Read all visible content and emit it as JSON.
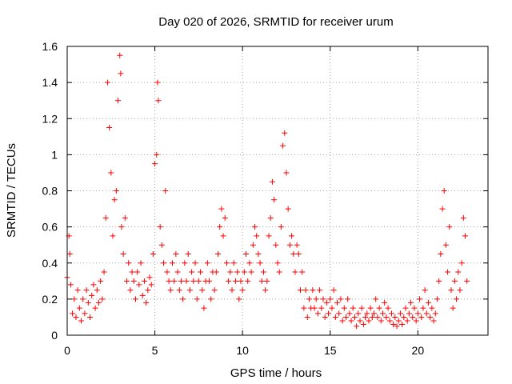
{
  "chart_data": {
    "type": "scatter",
    "title": "Day 020 of 2026, SRMTID for receiver urum",
    "xlabel": "GPS time / hours",
    "ylabel": "SRMTID / TECUs",
    "xlim": [
      0,
      24
    ],
    "ylim": [
      0,
      1.6
    ],
    "xticks": [
      0,
      5,
      10,
      15,
      20
    ],
    "xtick_labels": [
      "0",
      "5",
      "10",
      "15",
      "20"
    ],
    "yticks": [
      0,
      0.2,
      0.4,
      0.6,
      0.8,
      1.0,
      1.2,
      1.4,
      1.6
    ],
    "ytick_labels": [
      "0",
      "0.2",
      "0.4",
      "0.6",
      "0.8",
      "1",
      "1.2",
      "1.4",
      "1.6"
    ],
    "grid": true,
    "marker": "+",
    "color": "#ff0000",
    "series": [
      {
        "name": "SRMTID",
        "points": [
          [
            0.0,
            0.32
          ],
          [
            0.1,
            0.55
          ],
          [
            0.15,
            0.45
          ],
          [
            0.2,
            0.28
          ],
          [
            0.3,
            0.12
          ],
          [
            0.4,
            0.2
          ],
          [
            0.5,
            0.1
          ],
          [
            0.6,
            0.25
          ],
          [
            0.7,
            0.15
          ],
          [
            0.8,
            0.08
          ],
          [
            0.9,
            0.2
          ],
          [
            1.0,
            0.12
          ],
          [
            1.1,
            0.25
          ],
          [
            1.2,
            0.18
          ],
          [
            1.3,
            0.1
          ],
          [
            1.4,
            0.22
          ],
          [
            1.5,
            0.28
          ],
          [
            1.6,
            0.15
          ],
          [
            1.7,
            0.25
          ],
          [
            1.8,
            0.18
          ],
          [
            1.9,
            0.3
          ],
          [
            2.0,
            0.2
          ],
          [
            2.1,
            0.35
          ],
          [
            2.2,
            0.65
          ],
          [
            2.3,
            1.4
          ],
          [
            2.4,
            1.15
          ],
          [
            2.5,
            0.9
          ],
          [
            2.6,
            0.55
          ],
          [
            2.7,
            0.75
          ],
          [
            2.8,
            0.8
          ],
          [
            2.9,
            1.3
          ],
          [
            3.0,
            1.55
          ],
          [
            3.05,
            1.45
          ],
          [
            3.1,
            0.6
          ],
          [
            3.2,
            0.45
          ],
          [
            3.3,
            0.65
          ],
          [
            3.4,
            0.3
          ],
          [
            3.5,
            0.4
          ],
          [
            3.6,
            0.25
          ],
          [
            3.7,
            0.35
          ],
          [
            3.8,
            0.3
          ],
          [
            3.9,
            0.2
          ],
          [
            4.0,
            0.35
          ],
          [
            4.1,
            0.28
          ],
          [
            4.2,
            0.4
          ],
          [
            4.3,
            0.22
          ],
          [
            4.4,
            0.3
          ],
          [
            4.5,
            0.18
          ],
          [
            4.6,
            0.25
          ],
          [
            4.7,
            0.32
          ],
          [
            4.8,
            0.28
          ],
          [
            4.9,
            0.45
          ],
          [
            5.0,
            0.95
          ],
          [
            5.1,
            1.0
          ],
          [
            5.15,
            1.4
          ],
          [
            5.2,
            1.3
          ],
          [
            5.3,
            0.6
          ],
          [
            5.4,
            0.5
          ],
          [
            5.5,
            0.4
          ],
          [
            5.6,
            0.8
          ],
          [
            5.7,
            0.35
          ],
          [
            5.8,
            0.3
          ],
          [
            5.9,
            0.25
          ],
          [
            6.0,
            0.4
          ],
          [
            6.1,
            0.3
          ],
          [
            6.2,
            0.45
          ],
          [
            6.3,
            0.35
          ],
          [
            6.4,
            0.25
          ],
          [
            6.5,
            0.3
          ],
          [
            6.6,
            0.2
          ],
          [
            6.7,
            0.4
          ],
          [
            6.8,
            0.3
          ],
          [
            6.9,
            0.45
          ],
          [
            7.0,
            0.25
          ],
          [
            7.1,
            0.35
          ],
          [
            7.2,
            0.3
          ],
          [
            7.3,
            0.4
          ],
          [
            7.4,
            0.2
          ],
          [
            7.5,
            0.3
          ],
          [
            7.6,
            0.35
          ],
          [
            7.7,
            0.25
          ],
          [
            7.8,
            0.15
          ],
          [
            7.9,
            0.3
          ],
          [
            8.0,
            0.4
          ],
          [
            8.1,
            0.3
          ],
          [
            8.2,
            0.2
          ],
          [
            8.3,
            0.35
          ],
          [
            8.4,
            0.25
          ],
          [
            8.5,
            0.35
          ],
          [
            8.6,
            0.45
          ],
          [
            8.7,
            0.6
          ],
          [
            8.8,
            0.7
          ],
          [
            8.9,
            0.55
          ],
          [
            9.0,
            0.65
          ],
          [
            9.1,
            0.4
          ],
          [
            9.2,
            0.3
          ],
          [
            9.3,
            0.35
          ],
          [
            9.4,
            0.25
          ],
          [
            9.5,
            0.4
          ],
          [
            9.6,
            0.3
          ],
          [
            9.7,
            0.35
          ],
          [
            9.8,
            0.2
          ],
          [
            9.9,
            0.3
          ],
          [
            10.0,
            0.25
          ],
          [
            10.1,
            0.35
          ],
          [
            10.2,
            0.45
          ],
          [
            10.3,
            0.3
          ],
          [
            10.4,
            0.4
          ],
          [
            10.5,
            0.35
          ],
          [
            10.6,
            0.5
          ],
          [
            10.7,
            0.6
          ],
          [
            10.8,
            0.55
          ],
          [
            10.9,
            0.45
          ],
          [
            11.0,
            0.4
          ],
          [
            11.1,
            0.3
          ],
          [
            11.2,
            0.35
          ],
          [
            11.3,
            0.25
          ],
          [
            11.4,
            0.3
          ],
          [
            11.5,
            0.55
          ],
          [
            11.6,
            0.65
          ],
          [
            11.7,
            0.85
          ],
          [
            11.8,
            0.75
          ],
          [
            11.9,
            0.5
          ],
          [
            12.0,
            0.4
          ],
          [
            12.1,
            0.35
          ],
          [
            12.2,
            0.6
          ],
          [
            12.3,
            1.05
          ],
          [
            12.4,
            1.12
          ],
          [
            12.5,
            0.9
          ],
          [
            12.6,
            0.7
          ],
          [
            12.7,
            0.5
          ],
          [
            12.8,
            0.55
          ],
          [
            12.9,
            0.45
          ],
          [
            13.0,
            0.35
          ],
          [
            13.1,
            0.5
          ],
          [
            13.2,
            0.45
          ],
          [
            13.3,
            0.25
          ],
          [
            13.4,
            0.35
          ],
          [
            13.5,
            0.15
          ],
          [
            13.6,
            0.25
          ],
          [
            13.7,
            0.1
          ],
          [
            13.8,
            0.2
          ],
          [
            13.9,
            0.15
          ],
          [
            14.0,
            0.25
          ],
          [
            14.1,
            0.15
          ],
          [
            14.2,
            0.2
          ],
          [
            14.3,
            0.12
          ],
          [
            14.4,
            0.25
          ],
          [
            14.5,
            0.15
          ],
          [
            14.6,
            0.2
          ],
          [
            14.7,
            0.1
          ],
          [
            14.8,
            0.18
          ],
          [
            14.9,
            0.12
          ],
          [
            15.0,
            0.2
          ],
          [
            15.1,
            0.15
          ],
          [
            15.2,
            0.25
          ],
          [
            15.3,
            0.1
          ],
          [
            15.4,
            0.18
          ],
          [
            15.5,
            0.12
          ],
          [
            15.6,
            0.2
          ],
          [
            15.7,
            0.08
          ],
          [
            15.8,
            0.15
          ],
          [
            15.9,
            0.1
          ],
          [
            16.0,
            0.2
          ],
          [
            16.1,
            0.12
          ],
          [
            16.2,
            0.08
          ],
          [
            16.3,
            0.15
          ],
          [
            16.4,
            0.1
          ],
          [
            16.5,
            0.05
          ],
          [
            16.6,
            0.12
          ],
          [
            16.7,
            0.08
          ],
          [
            16.8,
            0.15
          ],
          [
            16.9,
            0.06
          ],
          [
            17.0,
            0.1
          ],
          [
            17.1,
            0.12
          ],
          [
            17.2,
            0.08
          ],
          [
            17.3,
            0.15
          ],
          [
            17.4,
            0.1
          ],
          [
            17.5,
            0.12
          ],
          [
            17.6,
            0.2
          ],
          [
            17.7,
            0.1
          ],
          [
            17.8,
            0.15
          ],
          [
            17.9,
            0.08
          ],
          [
            18.0,
            0.12
          ],
          [
            18.1,
            0.18
          ],
          [
            18.2,
            0.1
          ],
          [
            18.3,
            0.15
          ],
          [
            18.4,
            0.08
          ],
          [
            18.5,
            0.12
          ],
          [
            18.6,
            0.06
          ],
          [
            18.7,
            0.1
          ],
          [
            18.8,
            0.05
          ],
          [
            18.9,
            0.08
          ],
          [
            19.0,
            0.12
          ],
          [
            19.1,
            0.06
          ],
          [
            19.2,
            0.1
          ],
          [
            19.3,
            0.15
          ],
          [
            19.4,
            0.08
          ],
          [
            19.5,
            0.12
          ],
          [
            19.6,
            0.18
          ],
          [
            19.7,
            0.1
          ],
          [
            19.8,
            0.15
          ],
          [
            19.9,
            0.08
          ],
          [
            20.0,
            0.12
          ],
          [
            20.1,
            0.2
          ],
          [
            20.2,
            0.1
          ],
          [
            20.3,
            0.15
          ],
          [
            20.4,
            0.25
          ],
          [
            20.5,
            0.12
          ],
          [
            20.6,
            0.18
          ],
          [
            20.7,
            0.1
          ],
          [
            20.8,
            0.15
          ],
          [
            20.9,
            0.08
          ],
          [
            21.0,
            0.12
          ],
          [
            21.1,
            0.2
          ],
          [
            21.2,
            0.3
          ],
          [
            21.3,
            0.45
          ],
          [
            21.4,
            0.7
          ],
          [
            21.5,
            0.8
          ],
          [
            21.6,
            0.5
          ],
          [
            21.7,
            0.35
          ],
          [
            21.8,
            0.6
          ],
          [
            21.9,
            0.25
          ],
          [
            22.0,
            0.15
          ],
          [
            22.1,
            0.3
          ],
          [
            22.2,
            0.2
          ],
          [
            22.3,
            0.35
          ],
          [
            22.4,
            0.25
          ],
          [
            22.5,
            0.4
          ],
          [
            22.6,
            0.65
          ],
          [
            22.7,
            0.55
          ],
          [
            22.8,
            0.3
          ]
        ]
      }
    ]
  }
}
